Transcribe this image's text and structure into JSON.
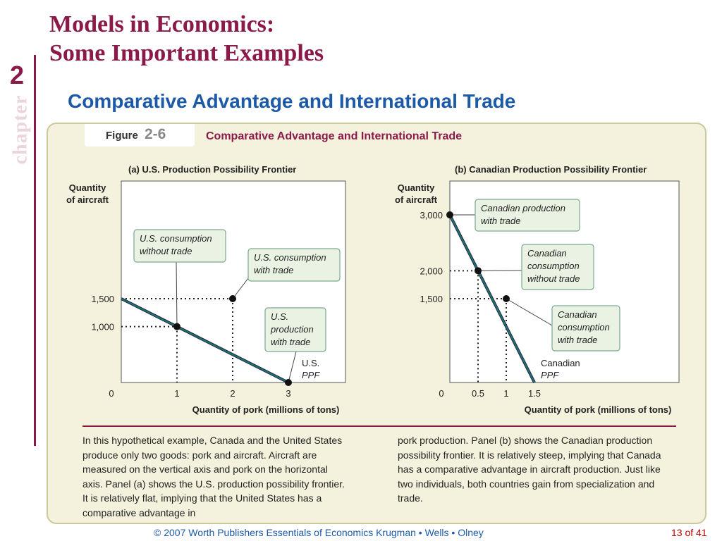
{
  "slide": {
    "title_line1": "Models in Economics:",
    "title_line2": "Some Important Examples",
    "chapter_number": "2",
    "chapter_label": "chapter",
    "subtitle": "Comparative Advantage and International Trade"
  },
  "figure": {
    "label": "Figure",
    "number": "2-6",
    "title": "Comparative Advantage and International Trade"
  },
  "chart_data": [
    {
      "type": "line",
      "title": "(a) U.S. Production Possibility Frontier",
      "ylabel_line1": "Quantity",
      "ylabel_line2": "of aircraft",
      "xlabel": "Quantity of pork (millions of tons)",
      "xlim": [
        0,
        3
      ],
      "ylim": [
        0,
        2200
      ],
      "x_ticks": [
        {
          "v": 0,
          "label": "0"
        },
        {
          "v": 1,
          "label": "1"
        },
        {
          "v": 2,
          "label": "2"
        },
        {
          "v": 3,
          "label": "3"
        }
      ],
      "y_ticks": [
        {
          "v": 1500,
          "label": "1,500"
        },
        {
          "v": 1000,
          "label": "1,000"
        }
      ],
      "ppf": [
        {
          "x": 0,
          "y": 1500
        },
        {
          "x": 3,
          "y": 0
        }
      ],
      "ppf_label_line1": "U.S.",
      "ppf_label_line2": "PPF",
      "points": [
        {
          "x": 1,
          "y": 1000,
          "label_lines": [
            "U.S. consumption",
            "without trade"
          ]
        },
        {
          "x": 2,
          "y": 1500,
          "label_lines": [
            "U.S. consumption",
            "with trade"
          ]
        },
        {
          "x": 3,
          "y": 0,
          "label_lines": [
            "U.S.",
            "production",
            "with trade"
          ]
        }
      ],
      "grid": false
    },
    {
      "type": "line",
      "title": "(b) Canadian Production Possibility Frontier",
      "ylabel_line1": "Quantity",
      "ylabel_line2": "of aircraft",
      "xlabel": "Quantity of pork (millions of tons)",
      "xlim": [
        0,
        2.2
      ],
      "ylim": [
        0,
        3500
      ],
      "x_ticks": [
        {
          "v": 0,
          "label": "0"
        },
        {
          "v": 0.5,
          "label": "0.5"
        },
        {
          "v": 1,
          "label": "1"
        },
        {
          "v": 1.5,
          "label": "1.5"
        }
      ],
      "y_ticks": [
        {
          "v": 3000,
          "label": "3,000"
        },
        {
          "v": 2000,
          "label": "2,000"
        },
        {
          "v": 1500,
          "label": "1,500"
        }
      ],
      "ppf": [
        {
          "x": 0,
          "y": 3000
        },
        {
          "x": 1.5,
          "y": 0
        }
      ],
      "ppf_label_line1": "Canadian",
      "ppf_label_line2": "PPF",
      "points": [
        {
          "x": 0,
          "y": 3000,
          "label_lines": [
            "Canadian production",
            "with trade"
          ]
        },
        {
          "x": 0.5,
          "y": 2000,
          "label_lines": [
            "Canadian",
            "consumption",
            "without trade"
          ]
        },
        {
          "x": 1,
          "y": 1500,
          "label_lines": [
            "Canadian",
            "consumption",
            "with trade"
          ]
        }
      ],
      "grid": false
    }
  ],
  "caption": {
    "left": "In this hypothetical example, Canada and the United States produce only two goods: pork and aircraft. Aircraft are measured on the vertical axis and pork on the horizontal axis. Panel (a) shows the U.S. production possibility frontier. It is relatively flat, implying that the United States has a comparative advantage in",
    "right": "pork production. Panel (b) shows the Canadian production possibility frontier. It is relatively steep, implying that Canada has a comparative advantage in aircraft production. Just like two individuals, both countries gain from specialization and trade."
  },
  "footer": {
    "text": "© 2007 Worth Publishers   Essentials of Economics   Krugman • Wells • Olney",
    "page": "13 of 41"
  },
  "colors": {
    "maroon": "#8b1a4a",
    "blue": "#1c5aa8",
    "panel_bg": "#f4f2dc",
    "ppf_line": "#1f6f82",
    "callout_bg": "#eaf3e3",
    "callout_border": "#7aa890"
  }
}
